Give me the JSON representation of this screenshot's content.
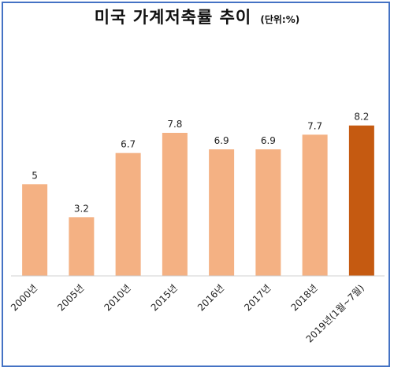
{
  "header": {
    "title": "미국 가계저축률 추이",
    "unit": "(단위:%)"
  },
  "chart_data": {
    "type": "bar",
    "title": "미국 가계저축률 추이",
    "unit": "(단위:%)",
    "categories": [
      "2000년",
      "2005년",
      "2010년",
      "2015년",
      "2016년",
      "2017년",
      "2018년",
      "2019년(1월~7월)"
    ],
    "values": [
      5,
      3.2,
      6.7,
      7.8,
      6.9,
      6.9,
      7.7,
      8.2
    ],
    "ylim": [
      0,
      10.5
    ],
    "grid": false,
    "legend": "none",
    "colors": {
      "bar": "#f4b183",
      "highlight": "#c55a11",
      "frame": "#4472c4"
    },
    "highlight_index": 7
  }
}
